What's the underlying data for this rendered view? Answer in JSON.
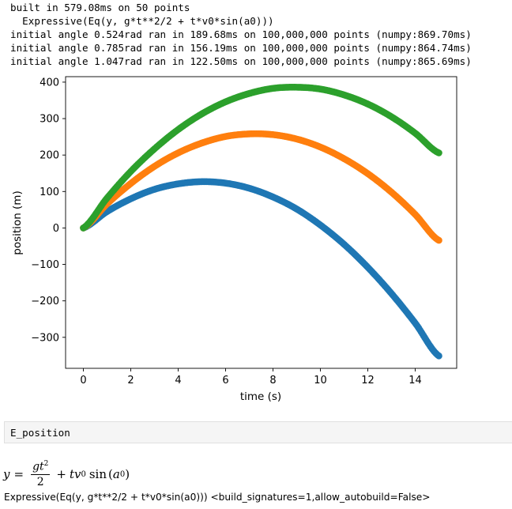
{
  "output": {
    "lines": [
      "built in 579.08ms on 50 points",
      "  Expressive(Eq(y, g*t**2/2 + t*v0*sin(a0)))",
      "initial angle 0.524rad ran in 189.68ms on 100,000,000 points (numpy:869.70ms)",
      "initial angle 0.785rad ran in 156.19ms on 100,000,000 points (numpy:864.74ms)",
      "initial angle 1.047rad ran in 122.50ms on 100,000,000 points (numpy:865.69ms)"
    ]
  },
  "chart_data": {
    "type": "scatter",
    "title": "",
    "xlabel": "time (s)",
    "ylabel": "position (m)",
    "xlim": [
      -0.75,
      15.75
    ],
    "ylim": [
      -385,
      415
    ],
    "xticks": [
      0,
      2,
      4,
      6,
      8,
      10,
      12,
      14
    ],
    "yticks": [
      400,
      300,
      200,
      100,
      0,
      -100,
      -200,
      -300
    ],
    "tick_labels_x": [
      "0",
      "2",
      "4",
      "6",
      "8",
      "10",
      "12",
      "14"
    ],
    "tick_labels_y": [
      "400",
      "300",
      "200",
      "100",
      "0",
      "−100",
      "−200",
      "−300"
    ],
    "grid": false,
    "series": [
      {
        "color": "#1f77b4",
        "x": [
          0,
          1,
          2,
          3,
          4,
          5,
          6,
          7,
          8,
          9,
          10,
          11,
          12,
          13,
          14,
          15
        ],
        "y": [
          0,
          45,
          80,
          106,
          121,
          127,
          123,
          109,
          85,
          52,
          8,
          -45,
          -108,
          -180,
          -261,
          -351
        ]
      },
      {
        "color": "#ff7f0e",
        "x": [
          0,
          1,
          2,
          3,
          4,
          5,
          6,
          7,
          8,
          9,
          10,
          11,
          12,
          13,
          14,
          15
        ],
        "y": [
          0,
          66,
          122,
          169,
          206,
          233,
          251,
          258,
          256,
          244,
          222,
          190,
          149,
          98,
          37,
          -34
        ]
      },
      {
        "color": "#2ca02c",
        "x": [
          0,
          1,
          2,
          3,
          4,
          5,
          6,
          7,
          8,
          9,
          10,
          11,
          12,
          13,
          14,
          15
        ],
        "y": [
          0,
          82,
          155,
          217,
          270,
          313,
          346,
          369,
          383,
          386,
          381,
          365,
          340,
          305,
          260,
          206
        ]
      }
    ]
  },
  "cell": {
    "code": "E_position"
  },
  "math": {
    "lhs": "y",
    "eq": "=",
    "num_var": "gt",
    "num_exp": "2",
    "den": "2",
    "plus": "+",
    "term": "tv",
    "term_sub": "0",
    "sin": "sin",
    "arg": "a",
    "arg_sub": "0"
  },
  "repr": "Expressive(Eq(y, g*t**2/2 + t*v0*sin(a0))) <build_signatures=1,allow_autobuild=False>"
}
